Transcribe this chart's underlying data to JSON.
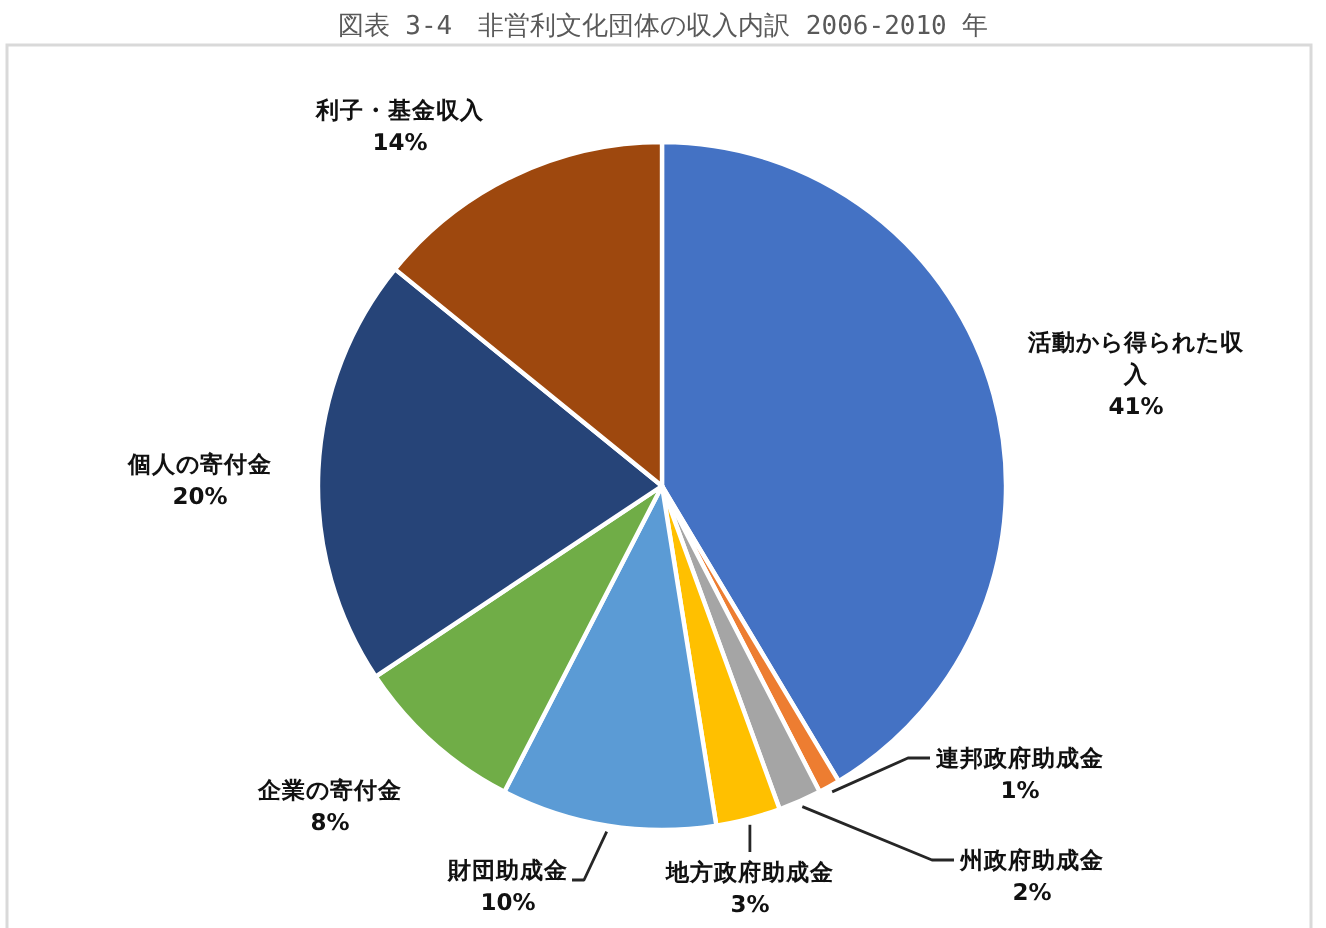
{
  "chart_data": {
    "type": "pie",
    "title": "図表 3-4　非営利文化団体の収入内訳 2006-2010 年",
    "categories": [
      "活動から得られた収入",
      "連邦政府助成金",
      "州政府助成金",
      "地方政府助成金",
      "財団助成金",
      "企業の寄付金",
      "個人の寄付金",
      "利子・基金収入"
    ],
    "values": [
      41,
      1,
      2,
      3,
      10,
      8,
      20,
      14
    ],
    "colors": [
      "#4472c4",
      "#ed7d31",
      "#a5a5a5",
      "#ffc000",
      "#5b9bd5",
      "#70ad47",
      "#264478",
      "#9e480e"
    ],
    "value_labels": [
      "41%",
      "1%",
      "2%",
      "3%",
      "10%",
      "8%",
      "20%",
      "14%"
    ]
  }
}
